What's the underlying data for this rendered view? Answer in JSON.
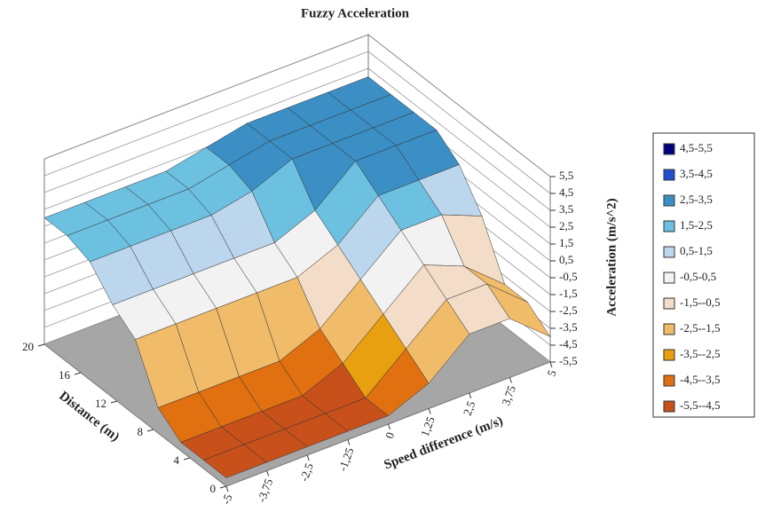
{
  "chart_data": {
    "type": "surface",
    "title": "Fuzzy Acceleration",
    "x_label": "Speed difference (m/s)",
    "y_label": "Distance (m)",
    "z_label": "Acceleration (m/s^2)",
    "x": [
      -5,
      -3.75,
      -2.5,
      -1.25,
      0,
      1.25,
      2.5,
      3.75,
      5
    ],
    "y": [
      0,
      2.5,
      5,
      7.5,
      10,
      12.5,
      15,
      17.5,
      20
    ],
    "z": [
      [
        -5,
        -5,
        -5,
        -5,
        -5,
        -4,
        -2,
        -2,
        -4
      ],
      [
        -5,
        -5,
        -5,
        -5,
        -5,
        -3,
        -1,
        -1,
        -3
      ],
      [
        -5,
        -5,
        -5,
        -5,
        -4,
        -2,
        0,
        -1,
        -3
      ],
      [
        -4,
        -4,
        -4,
        -4,
        -3,
        -1,
        1,
        1,
        0
      ],
      [
        -1,
        -1,
        -1,
        -1,
        -1,
        0,
        2,
        2,
        2
      ],
      [
        0,
        0,
        0,
        0,
        0,
        1,
        3,
        3,
        3
      ],
      [
        1.5,
        1.5,
        1.5,
        1.5,
        2,
        3,
        3,
        3,
        3
      ],
      [
        2,
        2,
        2,
        2,
        2.5,
        3,
        3,
        3,
        3
      ],
      [
        2,
        2,
        2,
        2,
        2.5,
        3,
        3,
        3,
        3
      ]
    ],
    "xlim": [
      -5,
      5
    ],
    "xticks": [
      -5,
      {
        "value": -3.75,
        "label": "-3,75"
      },
      {
        "value": -2.5,
        "label": "-2,5"
      },
      {
        "value": -1.25,
        "label": "-1,25"
      },
      0,
      {
        "value": 1.25,
        "label": "1,25"
      },
      {
        "value": 2.5,
        "label": "2,5"
      },
      {
        "value": 3.75,
        "label": "3,75"
      },
      5
    ],
    "ylim": [
      0,
      20
    ],
    "yticks": [
      0,
      4,
      8,
      12,
      16,
      20
    ],
    "zlim": [
      -5.5,
      5.5
    ],
    "zticks": [
      {
        "value": -5.5,
        "label": "-5,5"
      },
      {
        "value": -4.5,
        "label": "-4,5"
      },
      {
        "value": -3.5,
        "label": "-3,5"
      },
      {
        "value": -2.5,
        "label": "-2,5"
      },
      {
        "value": -1.5,
        "label": "-1,5"
      },
      {
        "value": -0.5,
        "label": "-0,5"
      },
      {
        "value": 0.5,
        "label": "0,5"
      },
      {
        "value": 1.5,
        "label": "1,5"
      },
      {
        "value": 2.5,
        "label": "2,5"
      },
      {
        "value": 3.5,
        "label": "3,5"
      },
      {
        "value": 4.5,
        "label": "4,5"
      },
      {
        "value": 5.5,
        "label": "5,5"
      }
    ],
    "bands": [
      {
        "name": "4,5-5,5",
        "from": 4.5,
        "to": 5.5,
        "color": "#00007f"
      },
      {
        "name": "3,5-4,5",
        "from": 3.5,
        "to": 4.5,
        "color": "#1f4fd0"
      },
      {
        "name": "2,5-3,5",
        "from": 2.5,
        "to": 3.5,
        "color": "#3b8fc4"
      },
      {
        "name": "1,5-2,5",
        "from": 1.5,
        "to": 2.5,
        "color": "#6cc0e0"
      },
      {
        "name": "0,5-1,5",
        "from": 0.5,
        "to": 1.5,
        "color": "#bcd6ee"
      },
      {
        "name": "-0,5-0,5",
        "from": -0.5,
        "to": 0.5,
        "color": "#f2f2f2"
      },
      {
        "name": "-1,5--0,5",
        "from": -1.5,
        "to": -0.5,
        "color": "#f3dcc8"
      },
      {
        "name": "-2,5--1,5",
        "from": -2.5,
        "to": -1.5,
        "color": "#f0bc6a"
      },
      {
        "name": "-3,5--2,5",
        "from": -3.5,
        "to": -2.5,
        "color": "#e8a010"
      },
      {
        "name": "-4,5--3,5",
        "from": -4.5,
        "to": -3.5,
        "color": "#e07010"
      },
      {
        "name": "-5,5--4,5",
        "from": -5.5,
        "to": -4.5,
        "color": "#c8501a"
      }
    ]
  }
}
